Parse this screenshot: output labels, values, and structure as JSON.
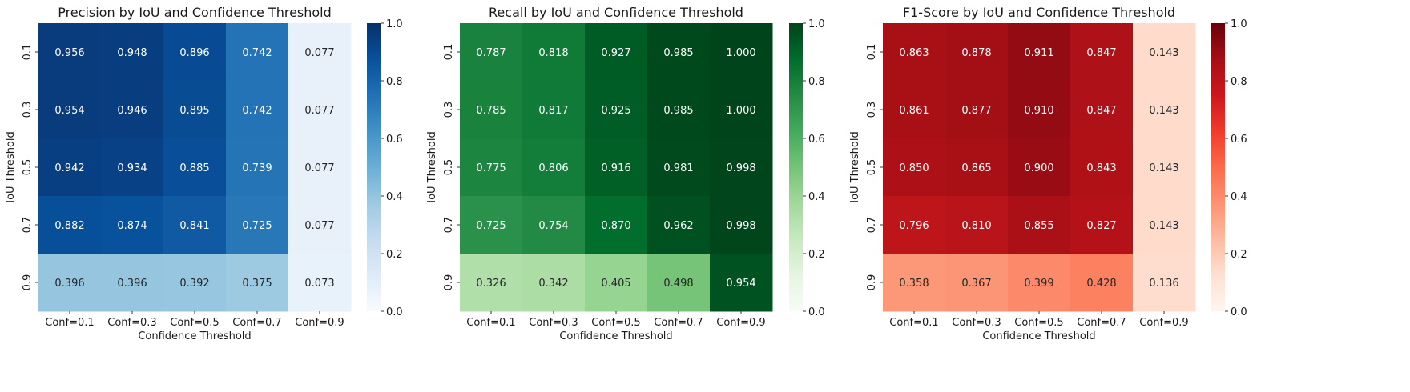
{
  "chart_data": [
    {
      "type": "heatmap",
      "title": "Precision by IoU and Confidence Threshold",
      "xlabel": "Confidence Threshold",
      "ylabel": "IoU Threshold",
      "x_categories": [
        "Conf=0.1",
        "Conf=0.3",
        "Conf=0.5",
        "Conf=0.7",
        "Conf=0.9"
      ],
      "y_categories": [
        "0.1",
        "0.3",
        "0.5",
        "0.7",
        "0.9"
      ],
      "values": [
        [
          0.956,
          0.948,
          0.896,
          0.742,
          0.077
        ],
        [
          0.954,
          0.946,
          0.895,
          0.742,
          0.077
        ],
        [
          0.942,
          0.934,
          0.885,
          0.739,
          0.077
        ],
        [
          0.882,
          0.874,
          0.841,
          0.725,
          0.077
        ],
        [
          0.396,
          0.396,
          0.392,
          0.375,
          0.073
        ]
      ],
      "colormap": "Blues",
      "vmin": 0.0,
      "vmax": 1.0,
      "colorbar_ticks": [
        "0.0",
        "0.2",
        "0.4",
        "0.6",
        "0.8",
        "1.0"
      ]
    },
    {
      "type": "heatmap",
      "title": "Recall by IoU and Confidence Threshold",
      "xlabel": "Confidence Threshold",
      "ylabel": "IoU Threshold",
      "x_categories": [
        "Conf=0.1",
        "Conf=0.3",
        "Conf=0.5",
        "Conf=0.7",
        "Conf=0.9"
      ],
      "y_categories": [
        "0.1",
        "0.3",
        "0.5",
        "0.7",
        "0.9"
      ],
      "values": [
        [
          0.787,
          0.818,
          0.927,
          0.985,
          1.0
        ],
        [
          0.785,
          0.817,
          0.925,
          0.985,
          1.0
        ],
        [
          0.775,
          0.806,
          0.916,
          0.981,
          0.998
        ],
        [
          0.725,
          0.754,
          0.87,
          0.962,
          0.998
        ],
        [
          0.326,
          0.342,
          0.405,
          0.498,
          0.954
        ]
      ],
      "colormap": "Greens",
      "vmin": 0.0,
      "vmax": 1.0,
      "colorbar_ticks": [
        "0.0",
        "0.2",
        "0.4",
        "0.6",
        "0.8",
        "1.0"
      ]
    },
    {
      "type": "heatmap",
      "title": "F1-Score by IoU and Confidence Threshold",
      "xlabel": "Confidence Threshold",
      "ylabel": "IoU Threshold",
      "x_categories": [
        "Conf=0.1",
        "Conf=0.3",
        "Conf=0.5",
        "Conf=0.7",
        "Conf=0.9"
      ],
      "y_categories": [
        "0.1",
        "0.3",
        "0.5",
        "0.7",
        "0.9"
      ],
      "values": [
        [
          0.863,
          0.878,
          0.911,
          0.847,
          0.143
        ],
        [
          0.861,
          0.877,
          0.91,
          0.847,
          0.143
        ],
        [
          0.85,
          0.865,
          0.9,
          0.843,
          0.143
        ],
        [
          0.796,
          0.81,
          0.855,
          0.827,
          0.143
        ],
        [
          0.358,
          0.367,
          0.399,
          0.428,
          0.136
        ]
      ],
      "colormap": "Reds",
      "vmin": 0.0,
      "vmax": 1.0,
      "colorbar_ticks": [
        "0.0",
        "0.2",
        "0.4",
        "0.6",
        "0.8",
        "1.0"
      ]
    }
  ],
  "colormaps": {
    "Blues": [
      "#f7fbff",
      "#deebf7",
      "#c6dbef",
      "#9ecae1",
      "#6baed6",
      "#4292c6",
      "#2171b5",
      "#08519c",
      "#08306b"
    ],
    "Greens": [
      "#f7fcf5",
      "#e5f5e0",
      "#c7e9c0",
      "#a1d99b",
      "#74c476",
      "#41ab5d",
      "#238b45",
      "#006d2c",
      "#00441b"
    ],
    "Reds": [
      "#fff5f0",
      "#fee0d2",
      "#fcbba1",
      "#fc9272",
      "#fb6a4a",
      "#ef3b2c",
      "#cb181d",
      "#a50f15",
      "#67000d"
    ]
  }
}
